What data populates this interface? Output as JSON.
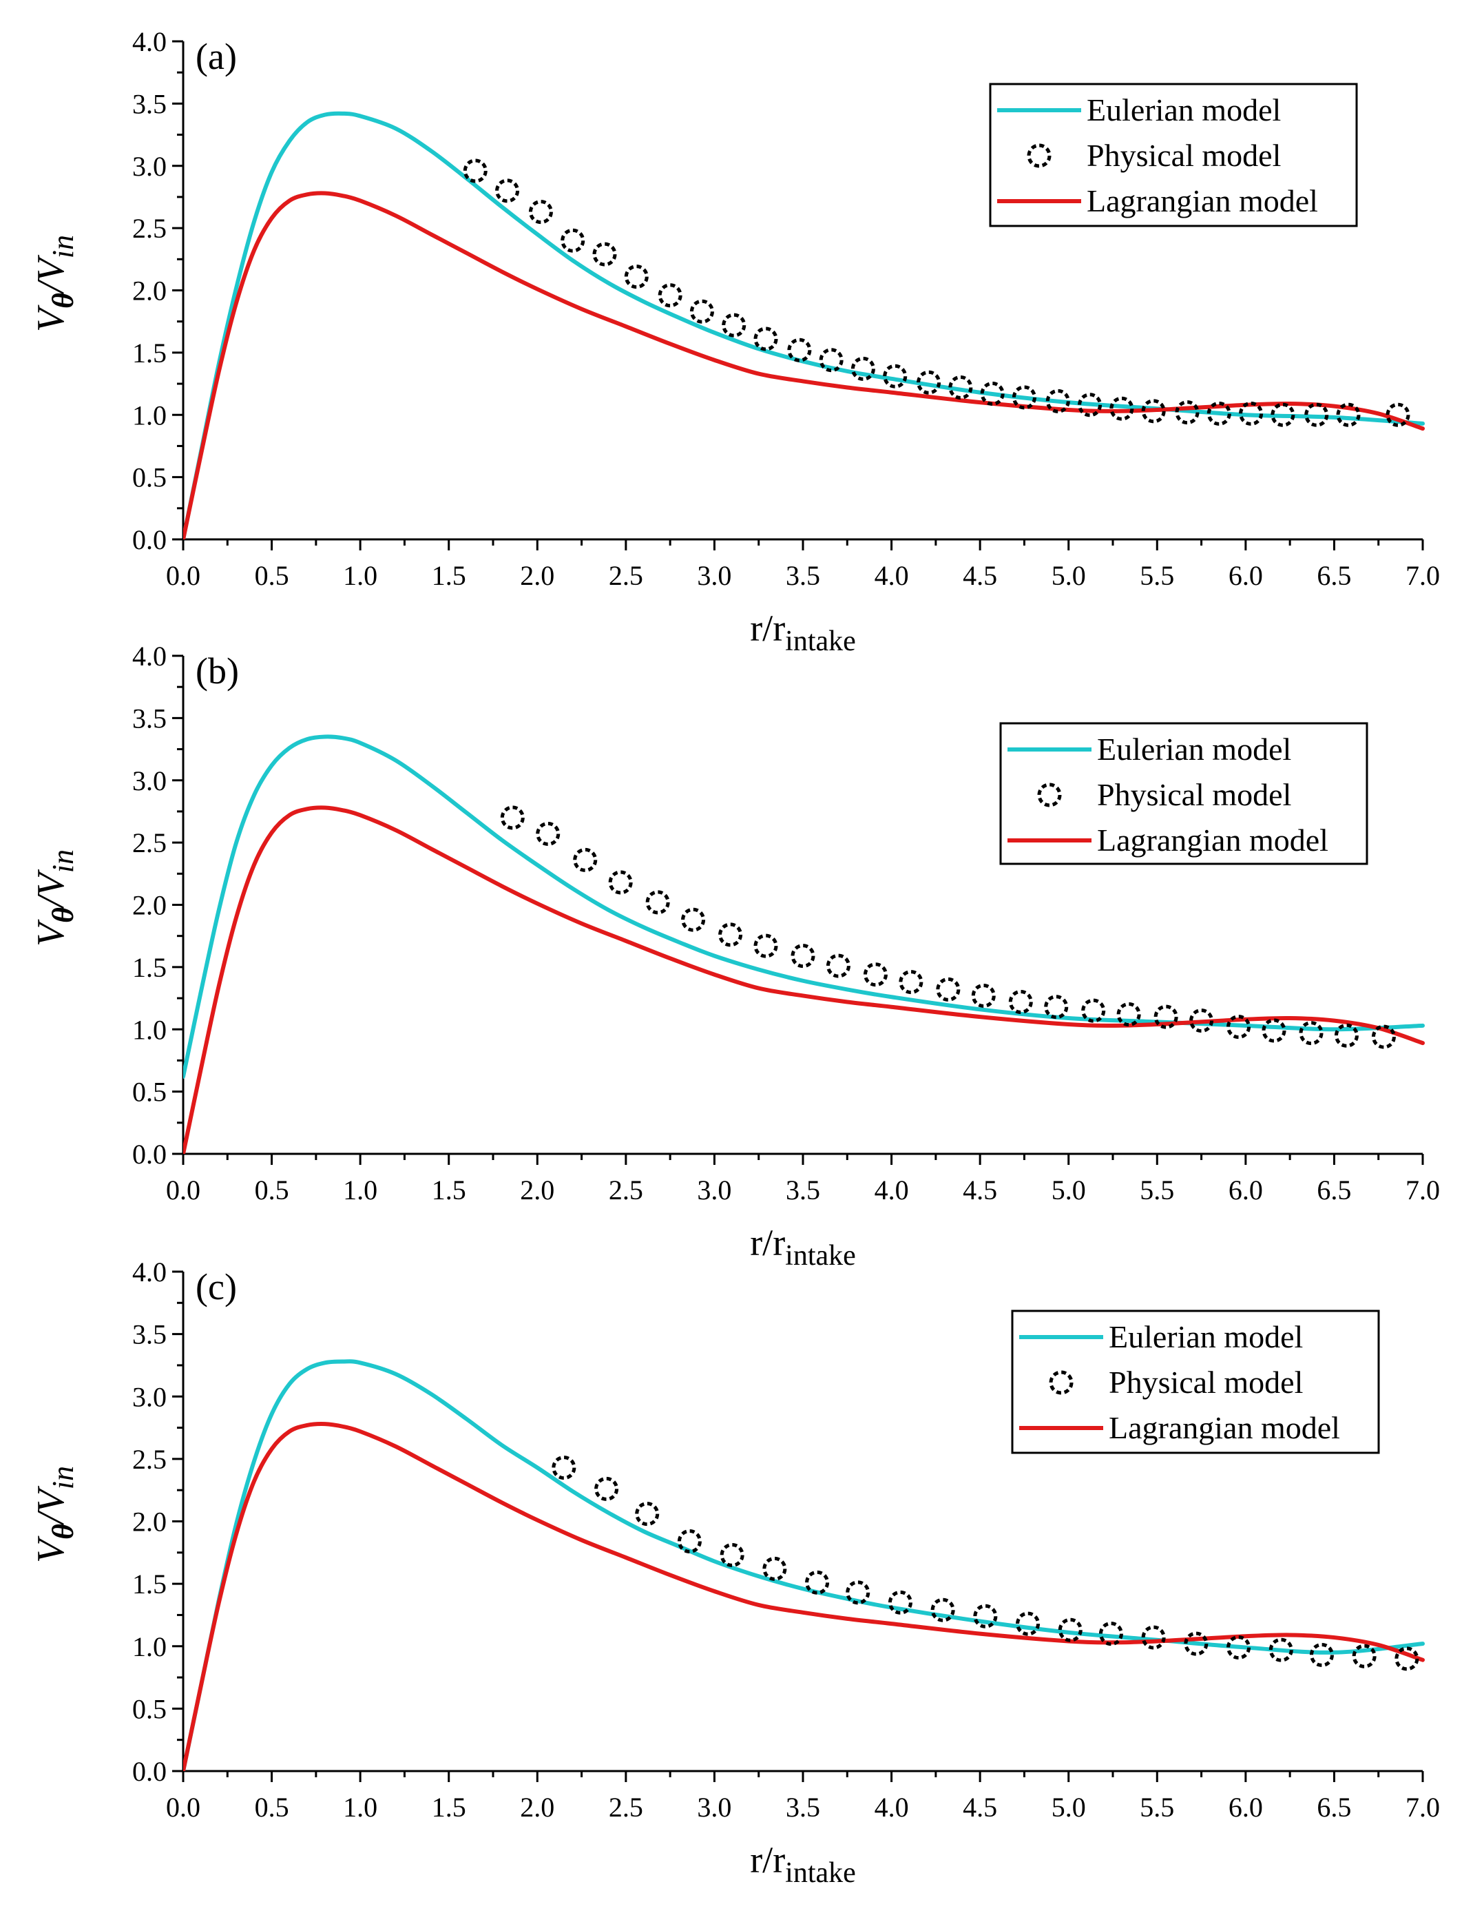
{
  "colors": {
    "eulerian": "#1ec6cc",
    "lagrangian": "#e11a1a",
    "physical_marker": "#000000",
    "axis": "#000000",
    "background": "#ffffff"
  },
  "chart_data": [
    {
      "type": "line",
      "panel_label": "(a)",
      "xlabel": "r/r",
      "xlabel_subscript": "intake",
      "ylabel_main": "V",
      "ylabel_sub1": "θ",
      "ylabel_slash": "/V",
      "ylabel_sub2": "in",
      "xlim": [
        0,
        7
      ],
      "ylim": [
        0,
        4
      ],
      "x_ticks": [
        "0.0",
        "0.5",
        "1.0",
        "1.5",
        "2.0",
        "2.5",
        "3.0",
        "3.5",
        "4.0",
        "4.5",
        "5.0",
        "5.5",
        "6.0",
        "6.5",
        "7.0"
      ],
      "y_ticks": [
        "0.0",
        "0.5",
        "1.0",
        "1.5",
        "2.0",
        "2.5",
        "3.0",
        "3.5",
        "4.0"
      ],
      "legend": {
        "position": "top-right",
        "entries": [
          "Eulerian model",
          "Physical model",
          "Lagrangian model"
        ]
      },
      "series": [
        {
          "name": "Eulerian model",
          "style": "line",
          "x": [
            0,
            0.1,
            0.2,
            0.3,
            0.4,
            0.5,
            0.6,
            0.7,
            0.8,
            0.9,
            1.0,
            1.2,
            1.4,
            1.6,
            1.8,
            2.0,
            2.2,
            2.4,
            2.6,
            2.8,
            3.0,
            3.25,
            3.5,
            3.75,
            4.0,
            4.5,
            5.0,
            5.5,
            6.0,
            6.5,
            7.0
          ],
          "y": [
            0,
            0.7,
            1.4,
            2.02,
            2.55,
            2.95,
            3.2,
            3.35,
            3.41,
            3.42,
            3.4,
            3.3,
            3.12,
            2.9,
            2.67,
            2.45,
            2.24,
            2.06,
            1.91,
            1.78,
            1.66,
            1.53,
            1.43,
            1.35,
            1.29,
            1.18,
            1.1,
            1.05,
            1.0,
            0.98,
            0.93
          ]
        },
        {
          "name": "Physical model",
          "style": "markers",
          "x": [
            1.65,
            1.83,
            2.02,
            2.2,
            2.38,
            2.56,
            2.75,
            2.93,
            3.11,
            3.29,
            3.48,
            3.66,
            3.84,
            4.02,
            4.21,
            4.39,
            4.57,
            4.75,
            4.94,
            5.12,
            5.3,
            5.48,
            5.67,
            5.85,
            6.03,
            6.21,
            6.4,
            6.58,
            6.86
          ],
          "y": [
            2.96,
            2.8,
            2.63,
            2.4,
            2.29,
            2.11,
            1.96,
            1.83,
            1.72,
            1.61,
            1.52,
            1.44,
            1.37,
            1.31,
            1.26,
            1.22,
            1.17,
            1.14,
            1.11,
            1.08,
            1.05,
            1.03,
            1.02,
            1.01,
            1.01,
            1.0,
            1.0,
            1.0,
            1.0
          ]
        },
        {
          "name": "Lagrangian model",
          "style": "line",
          "x": [
            0,
            0.1,
            0.2,
            0.3,
            0.4,
            0.5,
            0.6,
            0.7,
            0.8,
            0.9,
            1.0,
            1.2,
            1.4,
            1.6,
            1.8,
            2.0,
            2.25,
            2.5,
            2.75,
            3.0,
            3.25,
            3.5,
            3.75,
            4.0,
            4.5,
            5.0,
            5.25,
            5.5,
            5.75,
            6.0,
            6.25,
            6.5,
            6.75,
            7.0
          ],
          "y": [
            0,
            0.68,
            1.34,
            1.9,
            2.32,
            2.58,
            2.72,
            2.77,
            2.78,
            2.76,
            2.72,
            2.6,
            2.45,
            2.3,
            2.15,
            2.01,
            1.85,
            1.71,
            1.57,
            1.44,
            1.33,
            1.27,
            1.22,
            1.18,
            1.1,
            1.04,
            1.03,
            1.04,
            1.06,
            1.08,
            1.09,
            1.07,
            1.01,
            0.89
          ]
        }
      ]
    },
    {
      "type": "line",
      "panel_label": "(b)",
      "xlabel": "r/r",
      "xlabel_subscript": "intake",
      "ylabel_main": "V",
      "ylabel_sub1": "θ",
      "ylabel_slash": "/V",
      "ylabel_sub2": "in",
      "xlim": [
        0,
        7
      ],
      "ylim": [
        0,
        4
      ],
      "x_ticks": [
        "0.0",
        "0.5",
        "1.0",
        "1.5",
        "2.0",
        "2.5",
        "3.0",
        "3.5",
        "4.0",
        "4.5",
        "5.0",
        "5.5",
        "6.0",
        "6.5",
        "7.0"
      ],
      "y_ticks": [
        "0.0",
        "0.5",
        "1.0",
        "1.5",
        "2.0",
        "2.5",
        "3.0",
        "3.5",
        "4.0"
      ],
      "legend": {
        "position": "top-right",
        "entries": [
          "Eulerian model",
          "Physical model",
          "Lagrangian model"
        ]
      },
      "series": [
        {
          "name": "Eulerian model",
          "style": "line",
          "x": [
            0,
            0.1,
            0.2,
            0.3,
            0.4,
            0.5,
            0.6,
            0.7,
            0.8,
            0.9,
            1.0,
            1.2,
            1.4,
            1.6,
            1.8,
            2.0,
            2.2,
            2.4,
            2.6,
            2.8,
            3.0,
            3.25,
            3.5,
            3.75,
            4.0,
            4.5,
            5.0,
            5.5,
            6.0,
            6.5,
            7.0
          ],
          "y": [
            0.62,
            1.3,
            1.95,
            2.5,
            2.88,
            3.12,
            3.26,
            3.33,
            3.35,
            3.34,
            3.3,
            3.16,
            2.96,
            2.74,
            2.52,
            2.32,
            2.13,
            1.96,
            1.82,
            1.7,
            1.59,
            1.48,
            1.39,
            1.32,
            1.26,
            1.16,
            1.09,
            1.06,
            1.03,
            1.0,
            1.03
          ]
        },
        {
          "name": "Physical model",
          "style": "markers",
          "x": [
            1.86,
            2.06,
            2.27,
            2.47,
            2.68,
            2.88,
            3.09,
            3.29,
            3.5,
            3.7,
            3.91,
            4.11,
            4.32,
            4.52,
            4.73,
            4.93,
            5.14,
            5.34,
            5.55,
            5.75,
            5.96,
            6.16,
            6.37,
            6.57,
            6.78
          ],
          "y": [
            2.7,
            2.57,
            2.36,
            2.18,
            2.02,
            1.88,
            1.76,
            1.67,
            1.59,
            1.51,
            1.44,
            1.38,
            1.32,
            1.27,
            1.22,
            1.18,
            1.15,
            1.12,
            1.1,
            1.07,
            1.02,
            0.99,
            0.97,
            0.95,
            0.94
          ]
        },
        {
          "name": "Lagrangian model",
          "style": "line",
          "x": [
            0,
            0.1,
            0.2,
            0.3,
            0.4,
            0.5,
            0.6,
            0.7,
            0.8,
            0.9,
            1.0,
            1.2,
            1.4,
            1.6,
            1.8,
            2.0,
            2.25,
            2.5,
            2.75,
            3.0,
            3.25,
            3.5,
            3.75,
            4.0,
            4.5,
            5.0,
            5.25,
            5.5,
            5.75,
            6.0,
            6.25,
            6.5,
            6.75,
            7.0
          ],
          "y": [
            0,
            0.68,
            1.34,
            1.9,
            2.32,
            2.58,
            2.72,
            2.77,
            2.78,
            2.76,
            2.72,
            2.6,
            2.45,
            2.3,
            2.15,
            2.01,
            1.85,
            1.71,
            1.57,
            1.44,
            1.33,
            1.27,
            1.22,
            1.18,
            1.1,
            1.04,
            1.03,
            1.04,
            1.06,
            1.08,
            1.09,
            1.07,
            1.01,
            0.89
          ]
        }
      ]
    },
    {
      "type": "line",
      "panel_label": "(c)",
      "xlabel": "r/r",
      "xlabel_subscript": "intake",
      "ylabel_main": "V",
      "ylabel_sub1": "θ",
      "ylabel_slash": "/V",
      "ylabel_sub2": "in",
      "xlim": [
        0,
        7
      ],
      "ylim": [
        0,
        4
      ],
      "x_ticks": [
        "0.0",
        "0.5",
        "1.0",
        "1.5",
        "2.0",
        "2.5",
        "3.0",
        "3.5",
        "4.0",
        "4.5",
        "5.0",
        "5.5",
        "6.0",
        "6.5",
        "7.0"
      ],
      "y_ticks": [
        "0.0",
        "0.5",
        "1.0",
        "1.5",
        "2.0",
        "2.5",
        "3.0",
        "3.5",
        "4.0"
      ],
      "legend": {
        "position": "top-right",
        "entries": [
          "Eulerian model",
          "Physical model",
          "Lagrangian model"
        ]
      },
      "series": [
        {
          "name": "Eulerian model",
          "style": "line",
          "x": [
            0,
            0.1,
            0.2,
            0.3,
            0.4,
            0.5,
            0.6,
            0.7,
            0.8,
            0.9,
            1.0,
            1.2,
            1.4,
            1.6,
            1.8,
            2.0,
            2.2,
            2.4,
            2.6,
            2.8,
            3.0,
            3.25,
            3.5,
            3.75,
            4.0,
            4.5,
            5.0,
            5.5,
            6.0,
            6.5,
            7.0
          ],
          "y": [
            0,
            0.68,
            1.36,
            1.98,
            2.48,
            2.86,
            3.1,
            3.22,
            3.27,
            3.28,
            3.27,
            3.18,
            3.02,
            2.82,
            2.61,
            2.43,
            2.24,
            2.07,
            1.92,
            1.8,
            1.68,
            1.56,
            1.46,
            1.38,
            1.31,
            1.2,
            1.11,
            1.05,
            0.99,
            0.95,
            1.02
          ]
        },
        {
          "name": "Physical model",
          "style": "markers",
          "x": [
            2.15,
            2.39,
            2.62,
            2.86,
            3.1,
            3.34,
            3.58,
            3.81,
            4.05,
            4.29,
            4.53,
            4.77,
            5.01,
            5.24,
            5.48,
            5.72,
            5.96,
            6.2,
            6.43,
            6.67,
            6.91
          ],
          "y": [
            2.43,
            2.26,
            2.06,
            1.84,
            1.73,
            1.62,
            1.51,
            1.43,
            1.35,
            1.29,
            1.24,
            1.18,
            1.13,
            1.1,
            1.07,
            1.02,
            0.99,
            0.97,
            0.93,
            0.92,
            0.9
          ]
        },
        {
          "name": "Lagrangian model",
          "style": "line",
          "x": [
            0,
            0.1,
            0.2,
            0.3,
            0.4,
            0.5,
            0.6,
            0.7,
            0.8,
            0.9,
            1.0,
            1.2,
            1.4,
            1.6,
            1.8,
            2.0,
            2.25,
            2.5,
            2.75,
            3.0,
            3.25,
            3.5,
            3.75,
            4.0,
            4.5,
            5.0,
            5.25,
            5.5,
            5.75,
            6.0,
            6.25,
            6.5,
            6.75,
            7.0
          ],
          "y": [
            0,
            0.68,
            1.34,
            1.9,
            2.32,
            2.58,
            2.72,
            2.77,
            2.78,
            2.76,
            2.72,
            2.6,
            2.45,
            2.3,
            2.15,
            2.01,
            1.85,
            1.71,
            1.57,
            1.44,
            1.33,
            1.27,
            1.22,
            1.18,
            1.1,
            1.04,
            1.03,
            1.04,
            1.06,
            1.08,
            1.09,
            1.07,
            1.01,
            0.89
          ]
        }
      ]
    }
  ]
}
